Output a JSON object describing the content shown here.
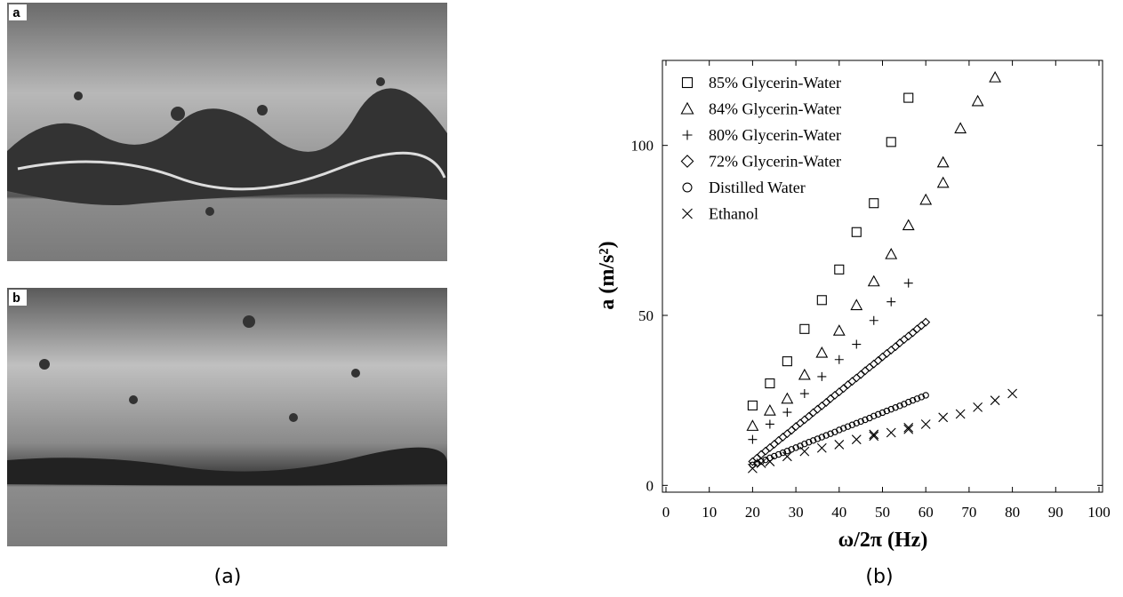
{
  "panels": [
    {
      "label": "a"
    },
    {
      "label": "b"
    }
  ],
  "captions": [
    "(a)",
    "(b)"
  ],
  "chart_data": {
    "type": "scatter",
    "x_label": "ω/2π (Hz)",
    "y_label": "a (m/s²)",
    "xlim": [
      0,
      100
    ],
    "ylim": [
      -2,
      125
    ],
    "xticks": [
      0,
      10,
      20,
      30,
      40,
      50,
      60,
      70,
      80,
      90,
      100
    ],
    "yticks": [
      0,
      50,
      100
    ],
    "legend": "upper-left",
    "series": [
      {
        "name": "85% Glycerin-Water",
        "marker": "square",
        "color": "#000000",
        "x": [
          20,
          24,
          28,
          32,
          36,
          40,
          44,
          48,
          52,
          56
        ],
        "values": [
          23.5,
          30,
          36.5,
          46,
          54.5,
          63.5,
          74.5,
          83,
          101,
          114
        ]
      },
      {
        "name": "84% Glycerin-Water",
        "marker": "triangle",
        "color": "#000000",
        "x": [
          20,
          24,
          28,
          32,
          36,
          40,
          44,
          48,
          52,
          56,
          60,
          64,
          64,
          68,
          72,
          76
        ],
        "values": [
          17.5,
          22,
          25.5,
          32.5,
          39,
          45.5,
          53,
          60,
          68,
          76.5,
          84,
          89,
          95,
          105,
          113,
          120
        ]
      },
      {
        "name": "80% Glycerin-Water",
        "marker": "plus",
        "color": "#000000",
        "x": [
          20,
          24,
          28,
          32,
          36,
          40,
          44,
          48,
          52,
          56
        ],
        "values": [
          13.5,
          18,
          21.5,
          27,
          32,
          37,
          41.5,
          48.5,
          54,
          59.5
        ]
      },
      {
        "name": "72% Glycerin-Water",
        "marker": "diamond",
        "color": "#000000",
        "x": [
          20,
          21,
          22,
          23,
          24,
          25,
          26,
          27,
          28,
          29,
          30,
          31,
          32,
          33,
          34,
          35,
          36,
          37,
          38,
          39,
          40,
          41,
          42,
          43,
          44,
          45,
          46,
          47,
          48,
          49,
          50,
          51,
          52,
          53,
          54,
          55,
          56,
          57,
          58,
          59,
          60
        ],
        "values": [
          7.0,
          8.0,
          9.1,
          10.1,
          11.1,
          12.1,
          13.2,
          14.2,
          15.2,
          16.2,
          17.3,
          18.3,
          19.3,
          20.3,
          21.4,
          22.4,
          23.4,
          24.4,
          25.5,
          26.5,
          27.5,
          28.5,
          29.6,
          30.6,
          31.6,
          32.6,
          33.7,
          34.7,
          35.7,
          36.7,
          37.8,
          38.8,
          39.8,
          40.8,
          41.9,
          42.9,
          43.9,
          44.9,
          46.0,
          47.0,
          48.0
        ]
      },
      {
        "name": "Distilled Water",
        "marker": "circle",
        "color": "#000000",
        "x": [
          20,
          21,
          22,
          23,
          24,
          25,
          26,
          27,
          28,
          29,
          30,
          31,
          32,
          33,
          34,
          35,
          36,
          37,
          38,
          39,
          40,
          41,
          42,
          43,
          44,
          45,
          46,
          47,
          48,
          49,
          50,
          51,
          52,
          53,
          54,
          55,
          56,
          57,
          58,
          59,
          60
        ],
        "values": [
          6.0,
          6.5,
          7.0,
          7.5,
          8.1,
          8.6,
          9.1,
          9.6,
          10.1,
          10.6,
          11.1,
          11.6,
          12.2,
          12.7,
          13.2,
          13.7,
          14.2,
          14.7,
          15.2,
          15.7,
          16.3,
          16.8,
          17.3,
          17.8,
          18.3,
          18.8,
          19.3,
          19.8,
          20.4,
          20.9,
          21.4,
          21.9,
          22.4,
          22.9,
          23.4,
          23.9,
          24.5,
          25.0,
          25.5,
          26.0,
          26.5
        ]
      },
      {
        "name": "Ethanol",
        "marker": "x",
        "color": "#000000",
        "x": [
          20,
          22,
          24,
          28,
          32,
          36,
          40,
          44,
          48,
          48,
          52,
          56,
          56,
          60,
          64,
          68,
          72,
          76,
          80
        ],
        "values": [
          5,
          6.5,
          7,
          8.5,
          10,
          11,
          12,
          13.5,
          15,
          14.5,
          15.5,
          16.5,
          17,
          18,
          20,
          21,
          23,
          25,
          27
        ]
      }
    ]
  }
}
